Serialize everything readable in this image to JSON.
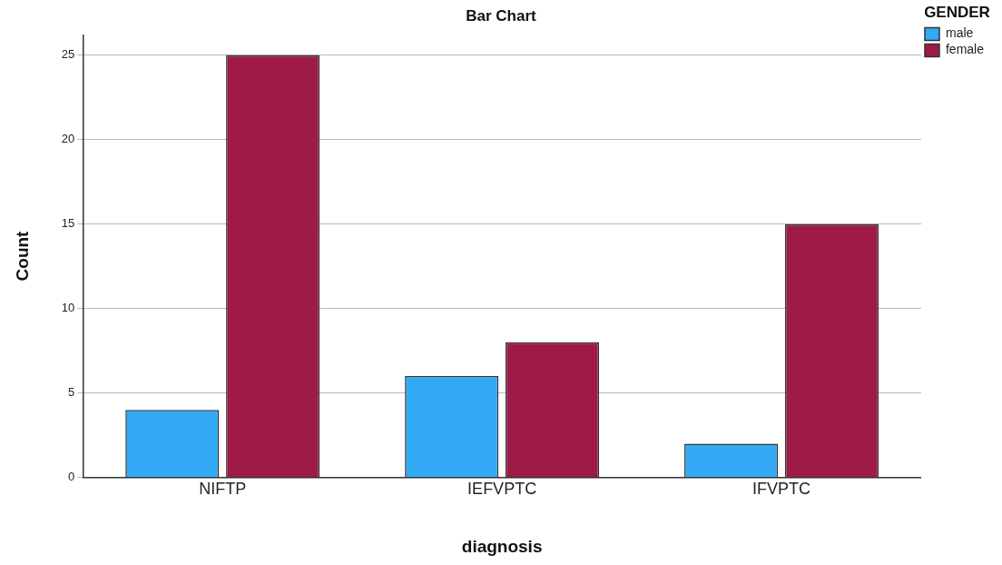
{
  "chart_data": {
    "type": "bar",
    "title": "Bar Chart",
    "xlabel": "diagnosis",
    "ylabel": "Count",
    "legend_title": "GENDER",
    "categories": [
      "NIFTP",
      "IEFVPTC",
      "IFVPTC"
    ],
    "series": [
      {
        "name": "male",
        "color": "#33aaf5",
        "values": [
          4,
          6,
          2
        ]
      },
      {
        "name": "female",
        "color": "#9e1a48",
        "values": [
          25,
          8,
          15
        ]
      }
    ],
    "ylim": [
      0,
      26.2
    ],
    "yticks": [
      0,
      5,
      10,
      15,
      20,
      25
    ],
    "grid": "y",
    "legend": "top right"
  }
}
